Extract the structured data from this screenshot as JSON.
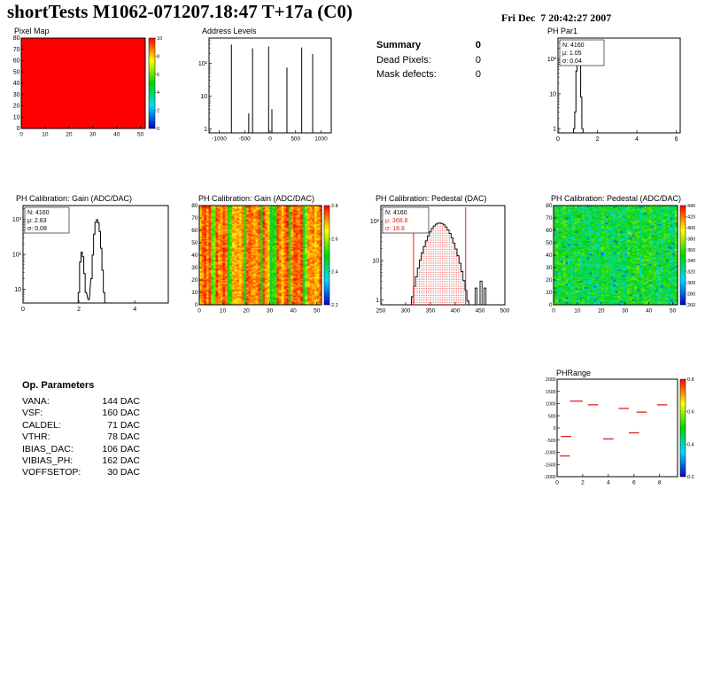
{
  "header": {
    "title": "shortTests M1062-071207.18:47 T+17a (C0)",
    "datetime": "Fri Dec  7 20:42:27 2007"
  },
  "summary": {
    "title": "Summary",
    "value": "0",
    "rows": [
      {
        "label": "Dead Pixels:",
        "value": "0"
      },
      {
        "label": "Mask defects:",
        "value": "0"
      }
    ]
  },
  "op_parameters": {
    "title": "Op. Parameters",
    "rows": [
      {
        "label": "VANA:",
        "value": "144 DAC"
      },
      {
        "label": "VSF:",
        "value": "160 DAC"
      },
      {
        "label": "CALDEL:",
        "value": "71 DAC"
      },
      {
        "label": "VTHR:",
        "value": "78 DAC"
      },
      {
        "label": "IBIAS_DAC:",
        "value": "106 DAC"
      },
      {
        "label": "VIBIAS_PH:",
        "value": "162 DAC"
      },
      {
        "label": "VOFFSETOP:",
        "value": "30 DAC"
      }
    ]
  },
  "colors": {
    "accent_red": "#e02020",
    "max_red": "#ff0000"
  },
  "chart_data": [
    {
      "id": "pixel-map",
      "type": "heatmap",
      "title": "Pixel Map",
      "x_range": [
        0,
        52
      ],
      "y_range": [
        0,
        80
      ],
      "x_ticks": [
        0,
        10,
        20,
        30,
        40,
        50
      ],
      "y_ticks": [
        0,
        10,
        20,
        30,
        40,
        50,
        60,
        70,
        80
      ],
      "z_uniform": true,
      "z_color_t": 1.0,
      "uniform_value": 10,
      "z_range": [
        0,
        10
      ],
      "colorbar": {
        "ticks": [
          "10",
          "8",
          "6",
          "4",
          "2",
          "0"
        ]
      }
    },
    {
      "id": "address-levels",
      "type": "spikes",
      "title": "Address Levels",
      "x_range": [
        -1200,
        1200
      ],
      "x_ticks": [
        -1000,
        -500,
        0,
        500,
        1000
      ],
      "ylog": true,
      "y_range": [
        0.75,
        600
      ],
      "y_ticks": [
        1,
        10,
        100
      ],
      "y_tick_labels": [
        "1",
        "10",
        "10²"
      ],
      "spikes": [
        [
          -760,
          380
        ],
        [
          -420,
          3
        ],
        [
          -345,
          290
        ],
        [
          -30,
          330
        ],
        [
          35,
          4
        ],
        [
          330,
          75
        ],
        [
          620,
          310
        ],
        [
          835,
          195
        ]
      ]
    },
    {
      "id": "ph-par1",
      "type": "hist-line",
      "title": "PH Par1",
      "x_range": [
        0,
        6.2
      ],
      "x_ticks": [
        0,
        2,
        4,
        6
      ],
      "ylog": true,
      "y_range": [
        0.75,
        400
      ],
      "y_ticks": [
        1,
        10,
        100
      ],
      "y_tick_labels": [
        "1",
        "10",
        "10²"
      ],
      "bin_width": 0.06,
      "points": [
        [
          0.82,
          1
        ],
        [
          0.88,
          3
        ],
        [
          0.94,
          45
        ],
        [
          1.0,
          190
        ],
        [
          1.06,
          210
        ],
        [
          1.12,
          90
        ],
        [
          1.18,
          8
        ],
        [
          1.24,
          1
        ]
      ],
      "stats": {
        "lines": [
          "N: 4160",
          "μ: 1.05",
          "σ: 0.04"
        ],
        "colors": [
          "#000000",
          "#000000",
          "#000000"
        ]
      }
    },
    {
      "id": "gain-1d",
      "type": "hist-line",
      "title": "PH Calibration: Gain (ADC/DAC)",
      "x_range": [
        0,
        5.2
      ],
      "x_ticks": [
        0,
        2,
        4
      ],
      "ylog": true,
      "y_range": [
        4,
        2500
      ],
      "y_ticks": [
        10,
        100,
        1000
      ],
      "y_tick_labels": [
        "10",
        "10²",
        "10³"
      ],
      "bin_width": 0.05,
      "points": [
        [
          2.0,
          8
        ],
        [
          2.05,
          60
        ],
        [
          2.1,
          115
        ],
        [
          2.15,
          85
        ],
        [
          2.2,
          28
        ],
        [
          2.25,
          8
        ],
        [
          2.35,
          5
        ],
        [
          2.45,
          20
        ],
        [
          2.5,
          95
        ],
        [
          2.55,
          380
        ],
        [
          2.6,
          820
        ],
        [
          2.65,
          980
        ],
        [
          2.7,
          800
        ],
        [
          2.75,
          450
        ],
        [
          2.8,
          150
        ],
        [
          2.85,
          35
        ],
        [
          2.9,
          8
        ]
      ],
      "stats": {
        "lines": [
          "N: 4160",
          "μ: 2.63",
          "σ: 0.08"
        ],
        "colors": [
          "#000000",
          "#000000",
          "#000000"
        ]
      }
    },
    {
      "id": "gain-2d",
      "type": "heatmap-noise",
      "title": "PH Calibration: Gain (ADC/DAC)",
      "x_range": [
        0,
        52
      ],
      "y_range": [
        0,
        80
      ],
      "x_ticks": [
        0,
        10,
        20,
        30,
        40,
        50
      ],
      "y_ticks": [
        0,
        10,
        20,
        30,
        40,
        50,
        60,
        70,
        80
      ],
      "cols": 52,
      "rows": 80,
      "seed": 7,
      "z_range": [
        2.2,
        2.9
      ],
      "base_t": 0.88,
      "base_jitter": 0.09,
      "cell_jitter": 0.18,
      "low_columns": [
        5,
        6,
        12,
        13,
        19,
        26,
        30,
        31,
        32,
        38,
        44,
        45
      ],
      "low_t": 0.55,
      "colorbar": {
        "ticks": [
          "2.8",
          "2.6",
          "2.4",
          "2.2"
        ]
      }
    },
    {
      "id": "pedestal-1d",
      "type": "gauss-hist",
      "title": "PH Calibration: Pedestal (DAC)",
      "x_range": [
        250,
        500
      ],
      "x_ticks": [
        250,
        300,
        350,
        400,
        450,
        500
      ],
      "ylog": true,
      "y_range": [
        0.75,
        250
      ],
      "y_ticks": [
        1,
        10,
        100
      ],
      "y_tick_labels": [
        "1",
        "10",
        "10²"
      ],
      "mean": 368.8,
      "sigma": 18.8,
      "amplitude": 90,
      "bin_width": 4,
      "extra_bars": [
        [
          442,
          2
        ],
        [
          452,
          3
        ],
        [
          460,
          2
        ]
      ],
      "marker_lines": [
        316,
        421
      ],
      "stats": {
        "lines": [
          "N: 4160",
          "μ: 368.8",
          "σ: 18.8"
        ],
        "colors": [
          "#000000",
          "#e02020",
          "#e02020"
        ]
      }
    },
    {
      "id": "pedestal-2d",
      "type": "heatmap-noise",
      "title": "PH Calibration: Pedestal (ADC/DAC)",
      "x_range": [
        0,
        52
      ],
      "y_range": [
        0,
        80
      ],
      "x_ticks": [
        0,
        10,
        20,
        30,
        40,
        50
      ],
      "y_ticks": [
        0,
        10,
        20,
        30,
        40,
        50,
        60,
        70,
        80
      ],
      "cols": 52,
      "rows": 80,
      "seed": 13,
      "z_range": [
        260,
        460
      ],
      "base_t": 0.46,
      "base_jitter": 0.06,
      "cell_jitter": 0.3,
      "low_frac": 0.02,
      "low_cell_t": 0.1,
      "colorbar": {
        "ticks": [
          "440",
          "420",
          "400",
          "380",
          "360",
          "340",
          "320",
          "300",
          "280",
          "260"
        ]
      }
    },
    {
      "id": "ph-range",
      "type": "segments",
      "title": "PHRange",
      "x_range": [
        0,
        9.4
      ],
      "x_ticks": [
        0,
        2,
        4,
        6,
        8
      ],
      "y_range": [
        -2000,
        2000
      ],
      "y_ticks": [
        2000,
        1500,
        1000,
        500,
        0,
        -500,
        -1000,
        -1500,
        -2000
      ],
      "segments": [
        [
          1.0,
          2.0,
          1100
        ],
        [
          2.4,
          3.2,
          950
        ],
        [
          4.8,
          5.6,
          800
        ],
        [
          6.2,
          7.0,
          650
        ],
        [
          7.8,
          8.6,
          950
        ],
        [
          0.3,
          1.1,
          -350
        ],
        [
          3.6,
          4.4,
          -450
        ],
        [
          0.2,
          1.0,
          -1150
        ],
        [
          5.6,
          6.4,
          -200
        ]
      ],
      "colorbar": {
        "ticks": [
          "0.8",
          "0.6",
          "0.4",
          "0.2"
        ]
      }
    }
  ]
}
